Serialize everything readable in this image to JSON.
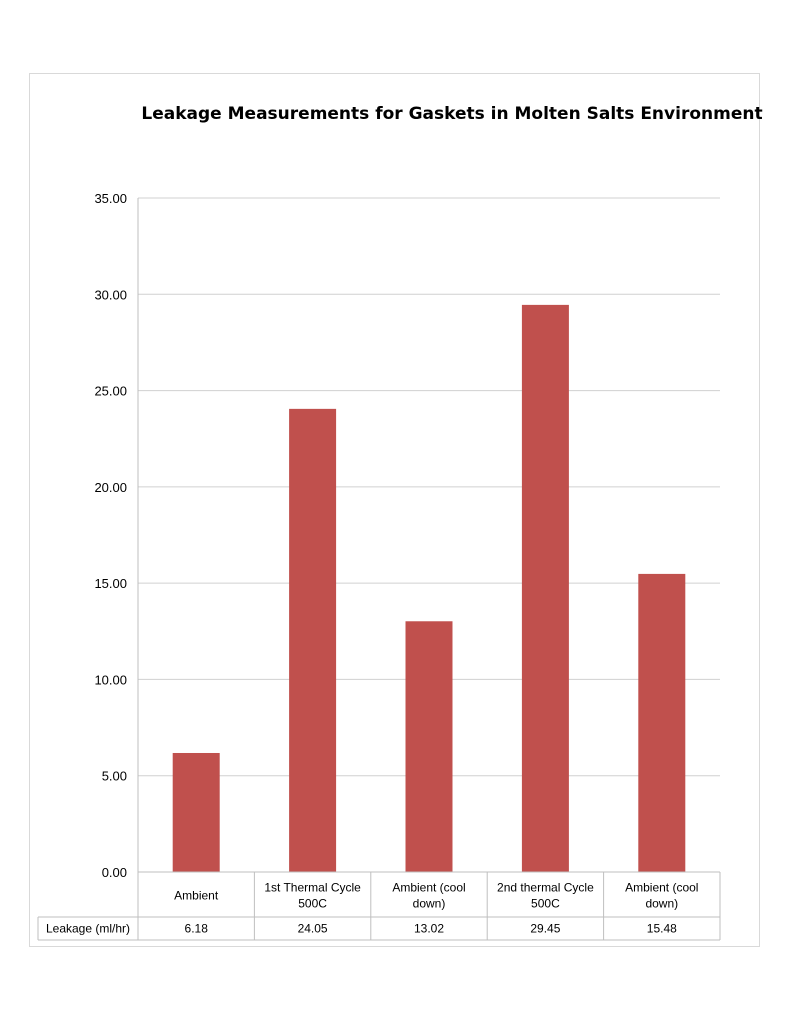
{
  "chart_data": {
    "type": "bar",
    "title": "Leakage Measurements for Gaskets in Molten Salts Environment",
    "categories": [
      [
        "Ambient"
      ],
      [
        "1st Thermal Cycle",
        "500C"
      ],
      [
        "Ambient (cool",
        "down)"
      ],
      [
        "2nd thermal Cycle",
        "500C"
      ],
      [
        "Ambient (cool",
        "down)"
      ]
    ],
    "series": [
      {
        "name": "Leakage (ml/hr)",
        "values": [
          6.18,
          24.05,
          13.02,
          29.45,
          15.48
        ],
        "labels": [
          "6.18",
          "24.05",
          "13.02",
          "29.45",
          "15.48"
        ],
        "color": "#c0504d"
      }
    ],
    "ylim": [
      0,
      35
    ],
    "ytick_labels": [
      "0.00",
      "5.00",
      "10.00",
      "15.00",
      "20.00",
      "25.00",
      "30.00",
      "35.00"
    ],
    "grid": true,
    "legend": "data-table"
  }
}
